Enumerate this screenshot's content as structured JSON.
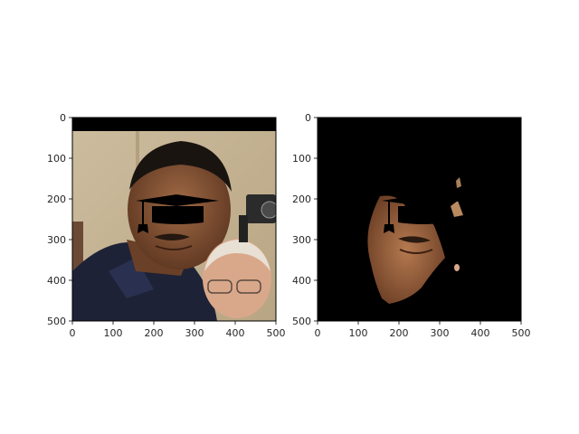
{
  "chart_data": [
    {
      "type": "image",
      "panel": "left",
      "content": "photo with black mortarboard-cap overlay drawn across the eyes",
      "xlim": [
        0,
        500
      ],
      "ylim": [
        500,
        0
      ],
      "xticks": [
        0,
        100,
        200,
        300,
        400,
        500
      ],
      "yticks": [
        0,
        100,
        200,
        300,
        400,
        500
      ],
      "xtick_labels": [
        "0",
        "100",
        "200",
        "300",
        "400",
        "500"
      ],
      "ytick_labels": [
        "0",
        "100",
        "200",
        "300",
        "400",
        "500"
      ]
    },
    {
      "type": "image",
      "panel": "right",
      "content": "segmented face mask on black background with the same cap overlay",
      "xlim": [
        0,
        500
      ],
      "ylim": [
        500,
        0
      ],
      "xticks": [
        0,
        100,
        200,
        300,
        400,
        500
      ],
      "yticks": [
        0,
        100,
        200,
        300,
        400,
        500
      ],
      "xtick_labels": [
        "0",
        "100",
        "200",
        "300",
        "400",
        "500"
      ],
      "ytick_labels": [
        "0",
        "100",
        "200",
        "300",
        "400",
        "500"
      ]
    }
  ],
  "colors": {
    "background": "#ffffff",
    "frame": "#000000",
    "mask_background": "#000000",
    "wall": "#c9b79a",
    "skin": "#8a5a3c",
    "shirt": "#1e2236",
    "cap": "#000000"
  }
}
